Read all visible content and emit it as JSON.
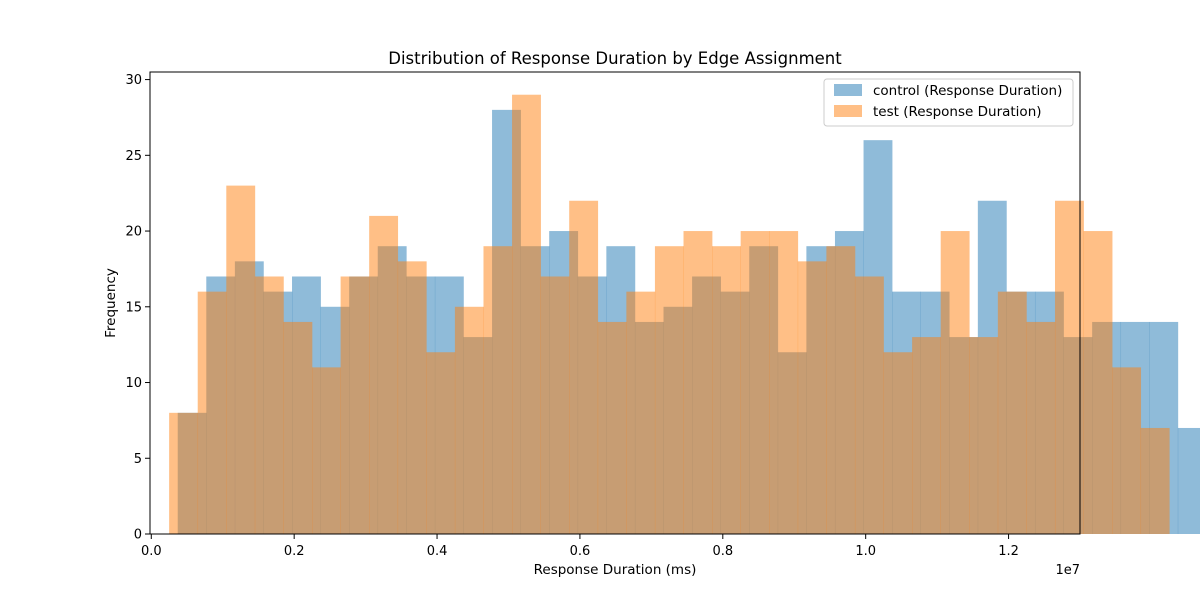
{
  "chart_data": {
    "type": "bar",
    "title": "Distribution of Response Duration by Edge Assignment",
    "xlabel": "Response Duration (ms)",
    "ylabel": "Frequency",
    "x_offset_label": "1e7",
    "xlim": [
      -0.0018,
      1.3
    ],
    "ylim": [
      0,
      30.5
    ],
    "x_ticks": [
      0.0,
      0.2,
      0.4,
      0.6,
      0.8,
      1.0,
      1.2
    ],
    "x_tick_labels": [
      "0.0",
      "0.2",
      "0.4",
      "0.6",
      "0.8",
      "1.0",
      "1.2"
    ],
    "y_ticks": [
      0,
      5,
      10,
      15,
      20,
      25,
      30
    ],
    "y_tick_labels": [
      "0",
      "5",
      "10",
      "15",
      "20",
      "25",
      "30"
    ],
    "grid": false,
    "legend_position": "top-right",
    "series": [
      {
        "name": "control (Response Duration)",
        "color": "#1f77b4",
        "opacity": 0.5,
        "bin_start": 0.037,
        "bin_width": 0.04,
        "counts": [
          8,
          17,
          18,
          16,
          17,
          15,
          17,
          19,
          17,
          17,
          13,
          28,
          19,
          20,
          17,
          19,
          14,
          15,
          17,
          16,
          19,
          12,
          19,
          20,
          26,
          16,
          16,
          13,
          22,
          16,
          16,
          13,
          14,
          14,
          14,
          7
        ]
      },
      {
        "name": "test (Response Duration)",
        "color": "#ff7f0e",
        "opacity": 0.5,
        "bin_start": 0.025,
        "bin_width": 0.04,
        "counts": [
          8,
          16,
          23,
          17,
          14,
          11,
          17,
          21,
          18,
          12,
          15,
          19,
          29,
          17,
          22,
          14,
          16,
          19,
          20,
          19,
          20,
          20,
          18,
          19,
          17,
          12,
          13,
          20,
          13,
          16,
          14,
          22,
          20,
          11,
          7
        ]
      }
    ]
  }
}
